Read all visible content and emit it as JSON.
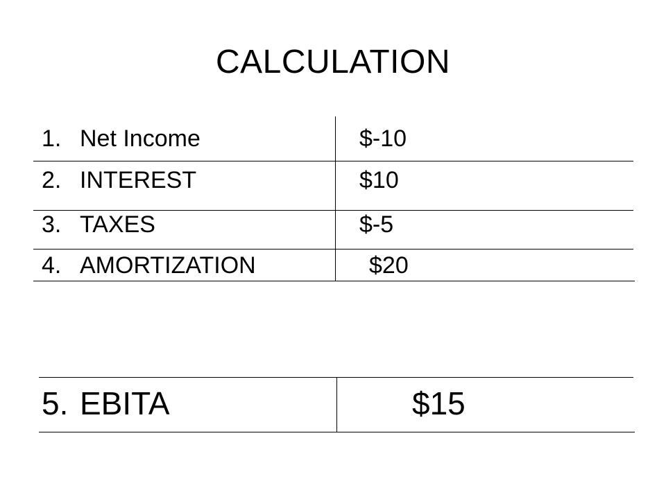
{
  "title": "CALCULATION",
  "items": [
    {
      "number": "1.",
      "label": "Net Income",
      "value": "$-10"
    },
    {
      "number": "2.",
      "label": "INTEREST",
      "value": "$10"
    },
    {
      "number": "3.",
      "label": "TAXES",
      "value": "$-5"
    },
    {
      "number": "4.",
      "label": "AMORTIZATION",
      "value": "$20"
    }
  ],
  "result": {
    "number": "5.",
    "label": "EBITA",
    "value": "$15"
  }
}
